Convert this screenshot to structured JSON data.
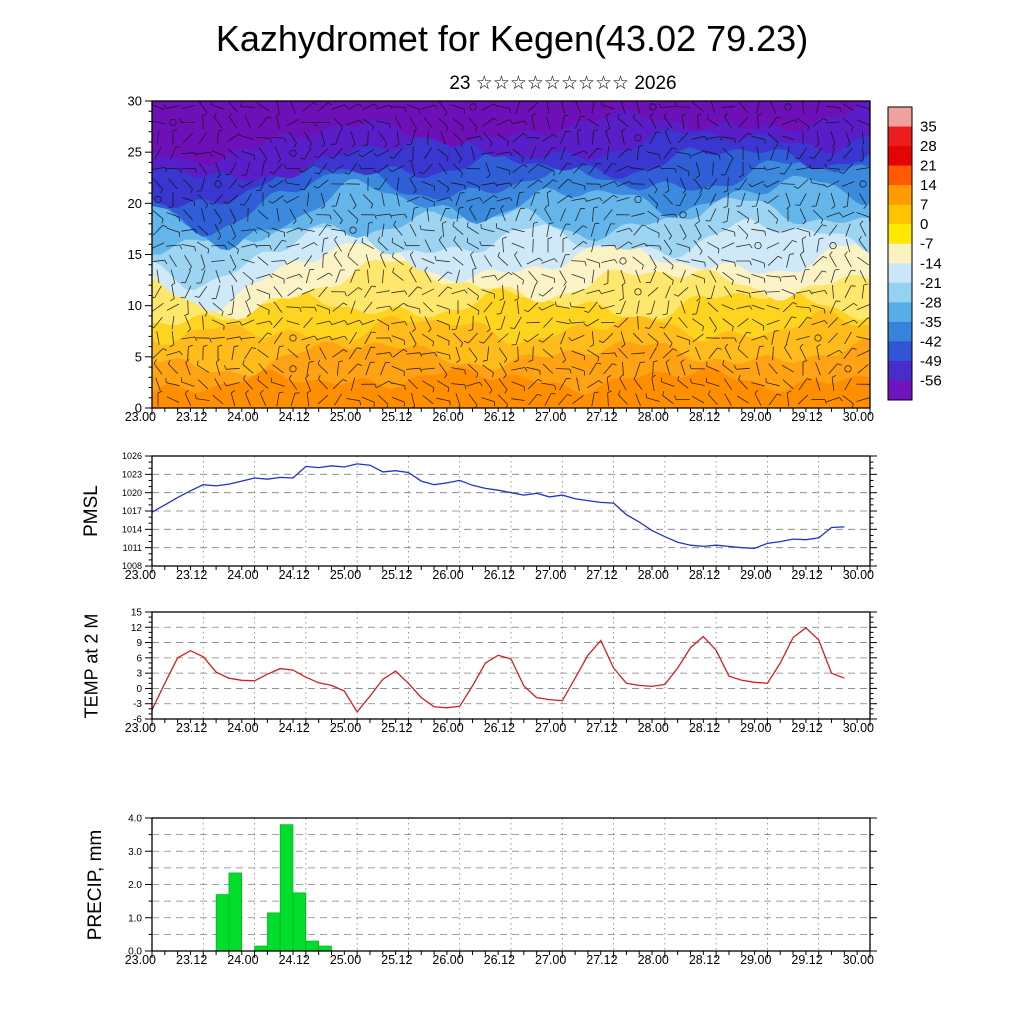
{
  "page": {
    "title": "Kazhydromet for Kegen(43.02 79.23)",
    "subtitle": "23 ☆☆☆☆☆☆☆☆☆ 2026"
  },
  "time_axis": {
    "tick_labels": [
      "23.00",
      "23.12",
      "24.00",
      "24.12",
      "25.00",
      "25.12",
      "26.00",
      "26.12",
      "27.00",
      "27.12",
      "28.00",
      "28.12",
      "29.00",
      "29.12",
      "30.00"
    ],
    "major_step_hours": 12,
    "minor_step_hours": 3,
    "total_hours": 168
  },
  "chart_data": [
    {
      "id": "cross_section",
      "type": "heatmap",
      "name": "time-height temperature cross-section",
      "overlay": "wind-barbs",
      "units": "degC",
      "ylim": [
        0,
        30
      ],
      "y_ticks": [
        0,
        5,
        10,
        15,
        20,
        25,
        30
      ],
      "times": [
        "23.00",
        "23.12",
        "24.00",
        "24.12",
        "25.00",
        "25.12",
        "26.00",
        "26.12",
        "27.00",
        "27.12",
        "28.00",
        "28.12",
        "29.00",
        "29.12",
        "30.00"
      ],
      "rows": [
        {
          "level": 30,
          "values": [
            -52,
            -54,
            -55,
            -56,
            -55,
            -54,
            -53,
            -52,
            -51,
            -50,
            -49,
            -48,
            -48,
            -47,
            -46
          ]
        },
        {
          "level": 25,
          "values": [
            -44,
            -47,
            -49,
            -50,
            -48,
            -45,
            -43,
            -42,
            -41,
            -40,
            -39,
            -38,
            -37,
            -36,
            -36
          ]
        },
        {
          "level": 20,
          "values": [
            -29,
            -32,
            -35,
            -35,
            -33,
            -31,
            -29,
            -28,
            -27,
            -26,
            -26,
            -25,
            -24,
            -24,
            -23
          ]
        },
        {
          "level": 15,
          "values": [
            -15,
            -18,
            -20,
            -19,
            -17,
            -15,
            -13,
            -12,
            -12,
            -11,
            -11,
            -10,
            -10,
            -9,
            -9
          ]
        },
        {
          "level": 10,
          "values": [
            -5,
            -7,
            -7,
            -6,
            -4,
            -3,
            -2,
            -2,
            -1,
            -1,
            0,
            0,
            0,
            1,
            1
          ]
        },
        {
          "level": 5,
          "values": [
            2,
            1,
            0,
            1,
            3,
            4,
            5,
            5,
            6,
            6,
            7,
            7,
            8,
            8,
            8
          ]
        },
        {
          "level": 0,
          "values": [
            5,
            3,
            2,
            3,
            6,
            8,
            9,
            9,
            10,
            10,
            11,
            11,
            12,
            12,
            12
          ]
        }
      ],
      "colorbar": {
        "tick_labels": [
          "35",
          "28",
          "21",
          "14",
          "7",
          "0",
          "-7",
          "-14",
          "-21",
          "-28",
          "-35",
          "-42",
          "-49",
          "-56"
        ],
        "colors_top_to_bottom": [
          "#f2a1a1",
          "#ec1c1c",
          "#e30505",
          "#ff5a00",
          "#ff9a00",
          "#ffc300",
          "#ffe800",
          "#faf3c0",
          "#c9e7f8",
          "#93d2f1",
          "#59ade8",
          "#3782da",
          "#2f55d4",
          "#4a2ccd",
          "#6f14bf"
        ]
      }
    },
    {
      "id": "pmsl",
      "type": "line",
      "ylabel": "PMSL",
      "color": "#2233cc",
      "ylim": [
        1008,
        1026
      ],
      "y_ticks": [
        "1008",
        "1011",
        "1014",
        "1017",
        "1020",
        "1023",
        "1026"
      ],
      "start_hour": 0,
      "step_hours": 3,
      "values": [
        1016.8,
        1018.0,
        1019.2,
        1020.3,
        1021.3,
        1021.1,
        1021.4,
        1021.9,
        1022.4,
        1022.2,
        1022.5,
        1022.4,
        1024.3,
        1024.1,
        1024.4,
        1024.2,
        1024.7,
        1024.5,
        1023.4,
        1023.6,
        1023.3,
        1021.9,
        1021.3,
        1021.6,
        1022.0,
        1021.2,
        1020.7,
        1020.4,
        1020.0,
        1019.6,
        1019.9,
        1019.3,
        1019.6,
        1019.0,
        1018.7,
        1018.4,
        1018.3,
        1016.4,
        1015.2,
        1013.8,
        1012.8,
        1011.9,
        1011.4,
        1011.2,
        1011.4,
        1011.2,
        1011.0,
        1010.9,
        1011.7,
        1012.0,
        1012.4,
        1012.3,
        1012.6,
        1014.3,
        1014.4
      ]
    },
    {
      "id": "temp2m",
      "type": "line",
      "ylabel": "TEMP at 2 M",
      "color": "#d42020",
      "ylim": [
        -6,
        15
      ],
      "y_ticks": [
        "-6",
        "-3",
        "0",
        "3",
        "6",
        "9",
        "12",
        "15"
      ],
      "start_hour": 0,
      "step_hours": 3,
      "values": [
        -4.2,
        1.0,
        6.0,
        7.4,
        6.2,
        3.2,
        2.0,
        1.6,
        1.5,
        2.8,
        3.9,
        3.6,
        2.2,
        1.1,
        0.6,
        -0.5,
        -4.6,
        -1.5,
        1.8,
        3.4,
        1.0,
        -1.8,
        -3.6,
        -3.8,
        -3.5,
        0.5,
        5.0,
        6.5,
        5.8,
        0.5,
        -1.8,
        -2.2,
        -2.4,
        2.0,
        6.5,
        9.4,
        4.0,
        1.0,
        0.6,
        0.4,
        0.8,
        4.0,
        8.0,
        10.2,
        7.5,
        2.4,
        1.6,
        1.2,
        1.0,
        5.0,
        10.0,
        11.9,
        9.5,
        3.0,
        2.0
      ]
    },
    {
      "id": "precip",
      "type": "bar",
      "ylabel": "PRECIP, mm",
      "color": "#00dd2a",
      "ylim": [
        0,
        4
      ],
      "y_ticks": [
        "0.0",
        "1.0",
        "2.0",
        "3.0",
        "4.0"
      ],
      "bar_width_hours": 3,
      "bars": [
        {
          "hour": 15,
          "value": 1.7
        },
        {
          "hour": 18,
          "value": 2.35
        },
        {
          "hour": 24,
          "value": 0.15
        },
        {
          "hour": 27,
          "value": 1.15
        },
        {
          "hour": 30,
          "value": 3.8
        },
        {
          "hour": 33,
          "value": 1.75
        },
        {
          "hour": 36,
          "value": 0.3
        },
        {
          "hour": 39,
          "value": 0.15
        }
      ]
    }
  ]
}
